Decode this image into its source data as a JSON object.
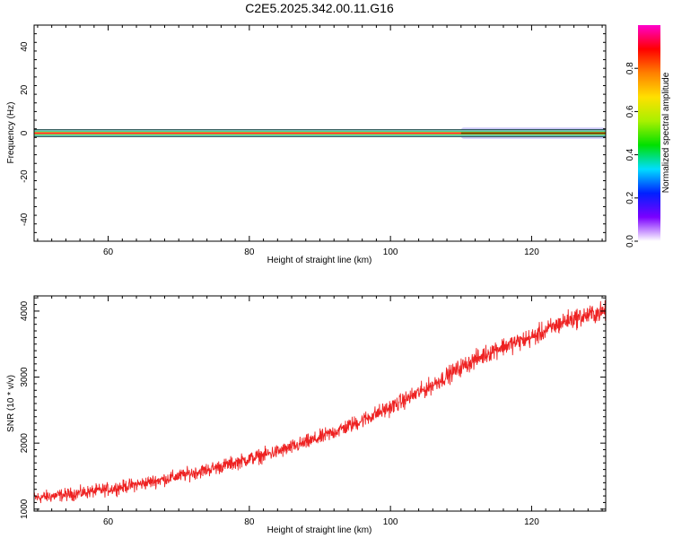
{
  "title": "C2E5.2025.342.00.11.G16",
  "chart_data": [
    {
      "type": "heatmap",
      "name": "spectrogram",
      "xlabel": "Height of straight line (km)",
      "ylabel": "Frequency (Hz)",
      "xlim": [
        49.5,
        130.5
      ],
      "ylim": [
        -50,
        50
      ],
      "xticks": [
        60,
        80,
        100,
        120
      ],
      "yticks": [
        -40,
        -20,
        0,
        20,
        40
      ],
      "xtick_labels": [
        "60",
        "80",
        "100",
        "120"
      ],
      "ytick_labels": [
        "-40",
        "-20",
        "0",
        "20",
        "40"
      ],
      "bands": [
        {
          "range": [
            -1.6,
            1.6
          ],
          "level": 0.1,
          "color": "#86c7c4"
        },
        {
          "range": [
            -0.9,
            0.9
          ],
          "level": 0.45,
          "color": "#2dd97a"
        },
        {
          "range": [
            -0.55,
            0.55
          ],
          "level": 0.7,
          "color": "#ffcc00"
        },
        {
          "range": [
            -0.3,
            0.3
          ],
          "level": 1.0,
          "color": "#ff1744"
        }
      ],
      "faint_patches": [
        {
          "x": [
            110,
            130.5
          ],
          "y": [
            -2.6,
            2.6
          ],
          "level": 0.25,
          "color": "#c4bff8"
        },
        {
          "x": [
            111,
            117
          ],
          "y": [
            -1.1,
            1.1
          ],
          "level": 0.6,
          "color": "#b3b54a"
        },
        {
          "x": [
            118,
            130.5
          ],
          "y": [
            -1.1,
            1.1
          ],
          "level": 0.6,
          "color": "#b3b54a"
        }
      ],
      "colorbar": {
        "label": "Normalized spectral amplitude",
        "range": [
          0,
          1
        ],
        "ticks": [
          0.0,
          0.2,
          0.4,
          0.6,
          0.8
        ],
        "tick_labels": [
          "0.0",
          "0.2",
          "0.4",
          "0.6",
          "0.8"
        ],
        "stops": [
          "#ffffff",
          "#7b00ff",
          "#0020ff",
          "#00ddff",
          "#00e000",
          "#a8f000",
          "#ffe000",
          "#ff8000",
          "#ff0000",
          "#ff00cc"
        ]
      }
    },
    {
      "type": "line",
      "name": "snr",
      "xlabel": "Height of straight line (km)",
      "ylabel": "SNR (10 * v/v)",
      "xlim": [
        49.5,
        130.5
      ],
      "ylim": [
        970,
        4230
      ],
      "xticks": [
        60,
        80,
        100,
        120
      ],
      "yticks": [
        1000,
        2000,
        3000,
        4000
      ],
      "xtick_labels": [
        "60",
        "80",
        "100",
        "120"
      ],
      "ytick_labels": [
        "1000",
        "2000",
        "3000",
        "4000"
      ],
      "color": "#ee2222",
      "noise_amplitude": 85,
      "series": [
        {
          "name": "SNR",
          "x": [
            49.5,
            55,
            60,
            65,
            70,
            75,
            80,
            85,
            90,
            95,
            100,
            105,
            110,
            115,
            120,
            125,
            130.5
          ],
          "y": [
            1170,
            1230,
            1300,
            1390,
            1500,
            1620,
            1760,
            1900,
            2080,
            2300,
            2540,
            2820,
            3150,
            3430,
            3600,
            3860,
            4000
          ]
        }
      ]
    }
  ]
}
